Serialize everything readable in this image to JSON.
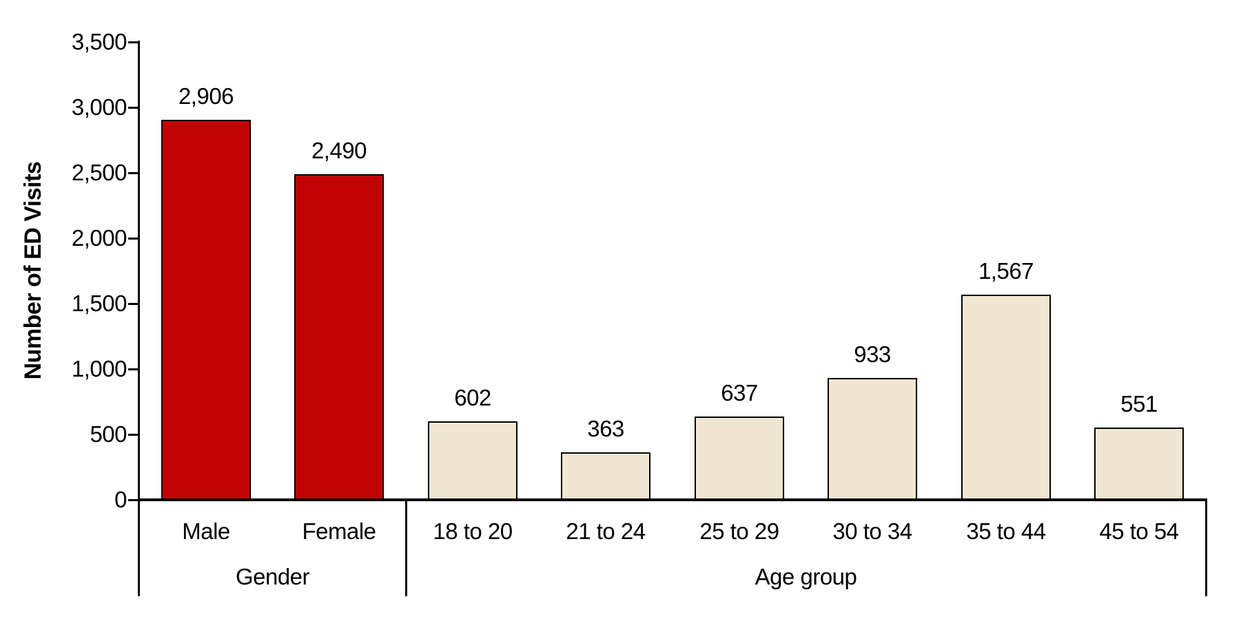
{
  "chart_data": {
    "type": "bar",
    "title": "",
    "ylabel": "Number of ED Visits",
    "xlabel": "",
    "ylim": [
      0,
      3500
    ],
    "ytick_interval": 500,
    "ytick_labels": [
      "0",
      "500",
      "1,000",
      "1,500",
      "2,000",
      "2,500",
      "3,000",
      "3,500"
    ],
    "grid": false,
    "legend": false,
    "groups": [
      {
        "label": "Gender",
        "bar_color": "#c00404",
        "categories": [
          "Male",
          "Female"
        ],
        "values": [
          2906,
          2490
        ],
        "value_labels": [
          "2,906",
          "2,490"
        ]
      },
      {
        "label": "Age group",
        "bar_color": "#f0e6d2",
        "categories": [
          "18 to 20",
          "21 to 24",
          "25 to 29",
          "30 to 34",
          "35 to 44",
          "45 to 54"
        ],
        "values": [
          602,
          363,
          637,
          933,
          1567,
          551
        ],
        "value_labels": [
          "602",
          "363",
          "637",
          "933",
          "1,567",
          "551"
        ]
      }
    ],
    "bar_border_color": "#000000",
    "axis_color": "#000000",
    "text_color": "#000000"
  }
}
